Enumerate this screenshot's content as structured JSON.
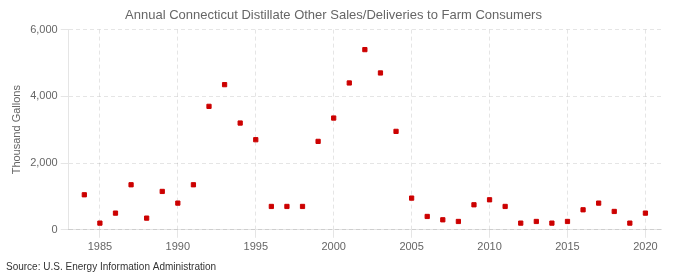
{
  "chart_data": {
    "type": "scatter",
    "title": "Annual Connecticut Distillate Other Sales/Deliveries to Farm Consumers",
    "ylabel": "Thousand Gallons",
    "annotation": "Source: U.S. Energy Information Administration",
    "x": [
      1984,
      1985,
      1986,
      1987,
      1988,
      1989,
      1990,
      1991,
      1992,
      1993,
      1994,
      1995,
      1996,
      1997,
      1998,
      1999,
      2000,
      2001,
      2002,
      2003,
      2004,
      2005,
      2006,
      2007,
      2008,
      2009,
      2010,
      2011,
      2012,
      2013,
      2014,
      2015,
      2016,
      2017,
      2018,
      2019,
      2020
    ],
    "values": [
      1050,
      200,
      500,
      1350,
      350,
      1150,
      800,
      1350,
      3700,
      4350,
      3200,
      2700,
      700,
      700,
      700,
      2650,
      3350,
      4400,
      5400,
      4700,
      2950,
      950,
      400,
      300,
      250,
      750,
      900,
      700,
      200,
      250,
      200,
      250,
      600,
      800,
      550,
      200,
      500
    ],
    "color": "#cc0000",
    "marker": "square",
    "xlim": [
      1983,
      2021
    ],
    "xticks": [
      1985,
      1990,
      1995,
      2000,
      2005,
      2010,
      2015,
      2020
    ],
    "ylim": [
      0,
      6000
    ],
    "yticks": [
      0,
      {
        "value": 2000,
        "label": "2,000"
      },
      {
        "value": 4000,
        "label": "4,000"
      },
      {
        "value": 6000,
        "label": "6,000"
      }
    ],
    "grid": true
  }
}
